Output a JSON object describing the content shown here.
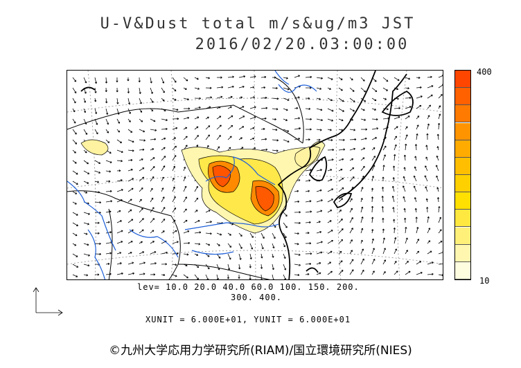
{
  "title": "U-V&Dust total m/s&ug/m3 JST",
  "datetime": "2016/02/20.03:00:00",
  "colorbar": {
    "max_label": "400",
    "min_label": "10",
    "colors": [
      "#fffde0",
      "#fff7b0",
      "#fff07a",
      "#ffe840",
      "#ffe000",
      "#ffd000",
      "#ffbf00",
      "#ffab00",
      "#ff9400",
      "#ff7a00",
      "#ff6000",
      "#ff4600"
    ]
  },
  "levels_line1": "lev= 10.0 20.0 40.0 60.0 100. 150. 200.",
  "levels_line2": "300. 400.",
  "units": "XUNIT = 6.000E+01, YUNIT = 6.000E+01",
  "copyright": "©九州大学応用力学研究所(RIAM)/国立環境研究所(NIES)"
}
